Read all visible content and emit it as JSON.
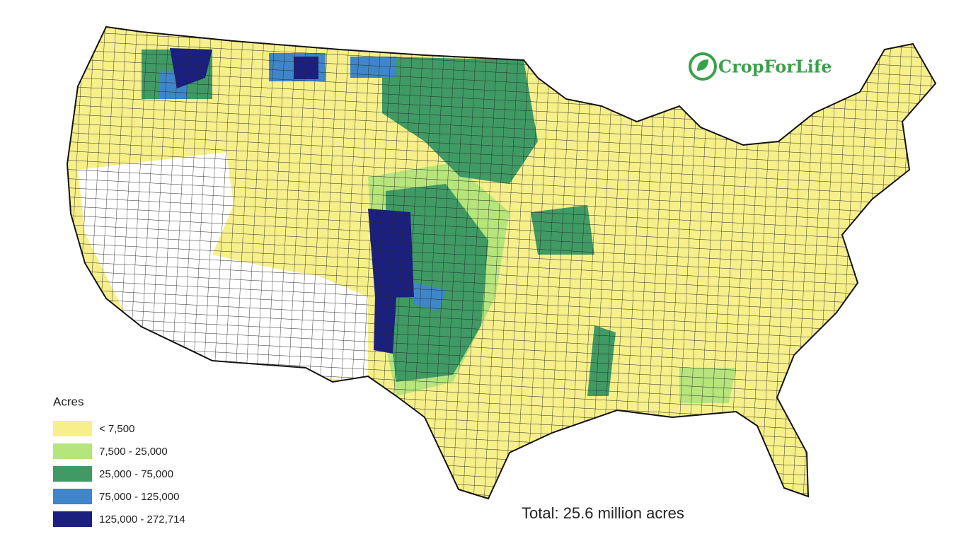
{
  "logo": "CropForLife",
  "legend": {
    "title": "Acres",
    "items": [
      {
        "label": "< 7,500",
        "color": "#f7f08a"
      },
      {
        "label": "7,500 - 25,000",
        "color": "#b6e57c"
      },
      {
        "label": "25,000 - 75,000",
        "color": "#3f9a64"
      },
      {
        "label": "75,000 - 125,000",
        "color": "#3e86c8"
      },
      {
        "label": "125,000 - 272,714",
        "color": "#1b1f7e"
      }
    ]
  },
  "total": "Total: 25.6 million acres"
}
